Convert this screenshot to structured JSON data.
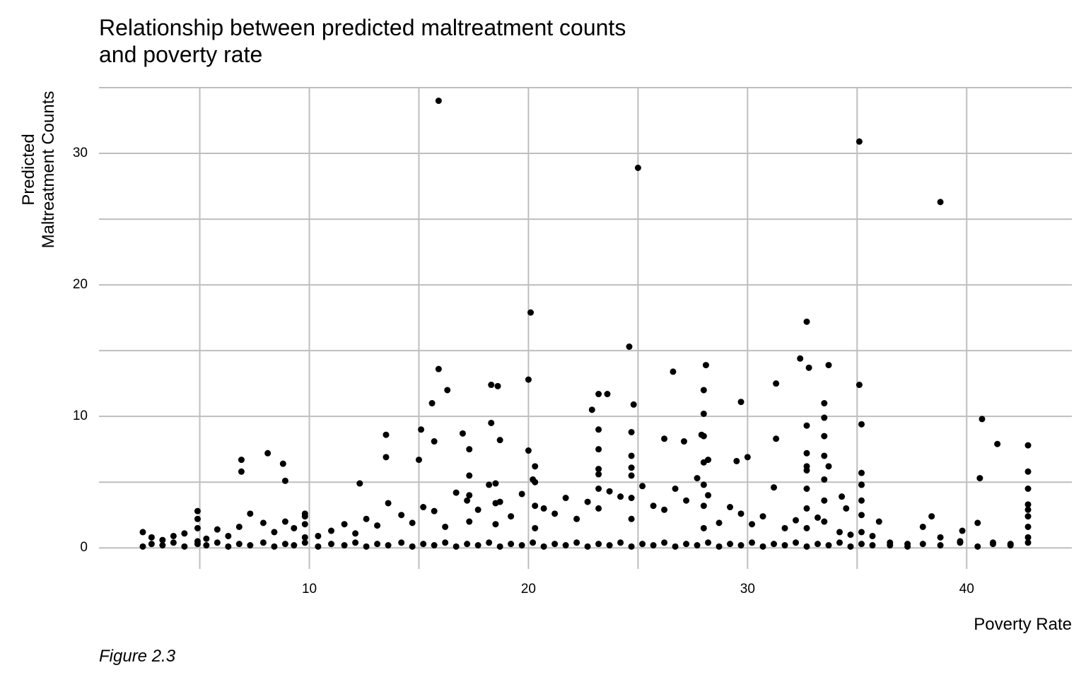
{
  "chart_data": {
    "type": "scatter",
    "title": [
      "Relationship between predicted maltreatment counts",
      "and poverty rate"
    ],
    "x_label": "Poverty Rate",
    "y_label": [
      "Predicted",
      "Maltreatment Counts"
    ],
    "caption": "Figure 2.3",
    "color": "#000000",
    "grid": true,
    "xlim": [
      0.4,
      44.8
    ],
    "xticks": [
      10,
      20,
      30,
      40
    ],
    "xminor": [
      5,
      15,
      25,
      35
    ],
    "ylim": [
      -1.6,
      35
    ],
    "yticks": [
      0,
      10,
      20,
      30
    ],
    "yminor": [
      5,
      15,
      25,
      35
    ],
    "x": [
      15.9,
      35.1,
      25.0,
      38.8,
      20.1,
      32.7,
      24.6,
      15.9,
      20.0,
      16.3,
      18.3,
      18.6,
      32.4,
      32.8,
      33.7,
      28.1,
      26.6,
      31.3,
      35.1,
      29.7,
      23.2,
      23.6,
      24.8,
      15.6,
      13.5,
      15.1,
      17.0,
      18.3,
      40.7,
      41.4,
      42.8,
      32.7,
      33.5,
      33.5,
      8.1,
      6.9,
      6.9,
      8.8,
      8.9,
      12.3,
      13.5,
      15.0,
      15.7,
      18.7,
      20.0,
      22.9,
      35.2,
      31.3,
      29.5,
      30.0,
      40.6,
      42.8,
      42.8,
      26.2,
      27.1,
      27.9,
      28.2,
      34.3,
      34.5,
      36.0,
      38.4,
      39.8,
      2.4,
      2.8,
      3.3,
      3.8,
      4.3,
      4.9,
      5.3,
      5.8,
      6.3,
      6.8,
      7.3,
      7.9,
      8.4,
      8.9,
      9.3,
      9.8,
      10.4,
      11.0,
      11.6,
      12.1,
      12.6,
      13.1,
      13.6,
      14.2,
      14.7,
      15.2,
      15.7,
      16.2,
      16.7,
      17.2,
      17.7,
      18.2,
      18.7,
      19.2,
      19.7,
      20.2,
      20.7,
      21.2,
      21.7,
      22.2,
      22.7,
      23.2,
      23.7,
      24.2,
      24.7,
      25.2,
      25.7,
      26.2,
      26.7,
      27.2,
      27.7,
      28.2,
      28.7,
      29.2,
      29.7,
      30.2,
      30.7,
      31.2,
      31.7,
      32.2,
      32.7,
      33.2,
      33.7,
      34.2,
      34.7,
      35.2,
      35.7,
      36.5,
      37.3,
      38.0,
      38.8,
      39.7,
      40.5,
      41.2,
      42.0,
      42.8,
      2.4,
      2.8,
      3.3,
      3.8,
      4.3,
      4.9,
      5.3,
      5.8,
      6.3,
      6.8,
      7.3,
      7.9,
      8.4,
      8.9,
      9.3,
      9.8,
      10.4,
      11.0,
      11.6,
      12.1,
      12.6,
      13.1,
      13.6,
      14.2,
      14.7,
      15.2,
      15.7,
      16.2,
      16.7,
      17.2,
      17.7,
      18.2,
      18.7,
      19.2,
      19.7,
      20.2,
      20.7,
      21.2,
      21.7,
      22.2,
      22.7,
      23.2,
      23.7,
      24.2,
      24.7,
      25.2,
      25.7,
      26.2,
      26.7,
      27.2,
      27.7,
      28.2,
      28.7,
      29.2,
      29.7,
      30.2,
      30.7,
      31.2,
      31.7,
      32.2,
      32.7,
      33.2,
      33.7,
      34.2,
      34.7,
      35.2,
      35.7,
      36.5,
      37.3,
      38.0,
      38.8,
      39.7,
      40.5,
      41.2,
      42.0,
      42.8,
      23.2,
      23.2,
      23.2,
      23.2,
      23.2,
      24.7,
      24.7,
      24.7,
      24.7,
      24.7,
      28.0,
      28.0,
      28.0,
      28.0,
      28.0,
      28.0,
      28.0,
      32.7,
      32.7,
      32.7,
      32.7,
      32.7,
      33.5,
      33.5,
      33.5,
      33.5,
      33.5,
      35.2,
      35.2,
      35.2,
      35.2,
      35.2,
      42.8,
      42.8,
      42.8,
      42.8,
      17.3,
      17.3,
      17.3,
      17.3,
      18.5,
      18.5,
      18.5,
      20.3,
      20.3,
      20.3,
      20.3,
      9.8,
      9.8,
      9.8,
      4.9,
      4.9,
      4.9
    ],
    "values": [
      34.0,
      30.9,
      28.9,
      26.3,
      17.9,
      17.2,
      15.3,
      13.6,
      12.8,
      12.0,
      12.4,
      12.3,
      14.4,
      13.7,
      13.9,
      13.9,
      13.4,
      12.5,
      12.4,
      11.1,
      11.7,
      11.7,
      10.9,
      11.0,
      8.6,
      9.0,
      8.7,
      9.5,
      9.8,
      7.9,
      7.8,
      9.3,
      11.0,
      9.9,
      7.2,
      6.7,
      5.8,
      6.4,
      5.1,
      4.9,
      6.9,
      6.7,
      8.1,
      8.2,
      7.4,
      10.5,
      9.4,
      8.3,
      6.6,
      6.9,
      5.3,
      5.8,
      4.5,
      8.3,
      8.1,
      8.6,
      6.7,
      3.9,
      3.0,
      2.0,
      2.4,
      1.3,
      0.1,
      0.3,
      0.2,
      0.4,
      0.1,
      0.3,
      0.2,
      0.4,
      0.1,
      0.3,
      0.2,
      0.4,
      0.1,
      0.3,
      0.2,
      0.4,
      0.1,
      0.3,
      0.2,
      0.4,
      0.1,
      0.3,
      0.2,
      0.4,
      0.1,
      0.3,
      0.2,
      0.4,
      0.1,
      0.3,
      0.2,
      0.4,
      0.1,
      0.3,
      0.2,
      0.4,
      0.1,
      0.3,
      0.2,
      0.4,
      0.1,
      0.3,
      0.2,
      0.4,
      0.1,
      0.3,
      0.2,
      0.4,
      0.1,
      0.3,
      0.2,
      0.4,
      0.1,
      0.3,
      0.2,
      0.4,
      0.1,
      0.3,
      0.2,
      0.4,
      0.1,
      0.3,
      0.2,
      0.4,
      0.1,
      0.3,
      0.2,
      0.4,
      0.1,
      0.3,
      0.2,
      0.4,
      0.1,
      0.3,
      0.2,
      0.4,
      1.2,
      0.8,
      0.6,
      0.9,
      1.1,
      2.8,
      0.7,
      1.4,
      0.9,
      1.6,
      2.6,
      1.9,
      1.2,
      2.0,
      1.5,
      2.4,
      0.9,
      1.3,
      1.8,
      1.1,
      2.2,
      1.7,
      3.4,
      2.5,
      1.9,
      3.1,
      2.8,
      1.6,
      4.2,
      3.6,
      2.9,
      4.8,
      3.5,
      2.4,
      4.1,
      5.2,
      3.0,
      2.6,
      3.8,
      2.2,
      3.5,
      5.6,
      4.3,
      3.9,
      6.1,
      4.7,
      3.2,
      2.9,
      4.5,
      3.6,
      5.3,
      4.0,
      1.9,
      3.1,
      2.6,
      1.8,
      2.4,
      4.6,
      1.5,
      2.1,
      5.9,
      2.3,
      6.2,
      1.2,
      1.0,
      4.8,
      0.9,
      0.2,
      0.3,
      1.6,
      0.8,
      0.5,
      1.9,
      0.4,
      0.3,
      2.9,
      3.0,
      4.5,
      6.0,
      7.5,
      9.0,
      2.2,
      3.8,
      5.5,
      7.0,
      8.8,
      1.5,
      3.2,
      4.8,
      6.5,
      8.5,
      10.2,
      12.0,
      1.5,
      3.0,
      4.5,
      6.2,
      7.2,
      2.0,
      3.6,
      5.2,
      7.0,
      8.5,
      1.2,
      2.5,
      3.6,
      4.8,
      5.7,
      0.8,
      1.6,
      2.4,
      3.3,
      2.0,
      4.0,
      5.5,
      7.5,
      1.8,
      3.4,
      4.9,
      1.5,
      3.2,
      5.0,
      6.2,
      0.8,
      1.8,
      2.6,
      0.5,
      1.5,
      2.2
    ]
  }
}
